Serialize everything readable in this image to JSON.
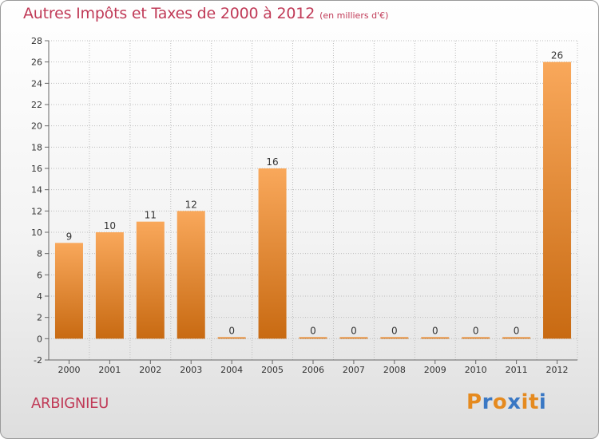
{
  "header": {
    "title": "Autres Impôts et Taxes de 2000 à 2012",
    "subtitle": "(en milliers d'€)"
  },
  "footer": {
    "place": "ARBIGNIEU",
    "logo_letters": [
      "P",
      "r",
      "o",
      "x",
      "i",
      "t",
      "i"
    ],
    "logo_colors": [
      "#e58a1f",
      "#3a78c4",
      "#e58a1f",
      "#3a78c4",
      "#e58a1f",
      "#e58a1f",
      "#3a78c4"
    ]
  },
  "colors": {
    "bar_top": "#f9a85b",
    "bar_bottom": "#c86a12",
    "grid": "#bdbdbd",
    "title": "#c03a57"
  },
  "chart_data": {
    "type": "bar",
    "title": "Autres Impôts et Taxes de 2000 à 2012",
    "subtitle": "(en milliers d'€)",
    "categories": [
      "2000",
      "2001",
      "2002",
      "2003",
      "2004",
      "2005",
      "2006",
      "2007",
      "2008",
      "2009",
      "2010",
      "2011",
      "2012"
    ],
    "values": [
      9,
      10,
      11,
      12,
      0,
      16,
      0,
      0,
      0,
      0,
      0,
      0,
      26
    ],
    "ylim": [
      -2,
      28
    ],
    "yticks": [
      -2,
      0,
      2,
      4,
      6,
      8,
      10,
      12,
      14,
      16,
      18,
      20,
      22,
      24,
      26,
      28
    ],
    "grid": "horizontal dotted",
    "legend": "none"
  }
}
